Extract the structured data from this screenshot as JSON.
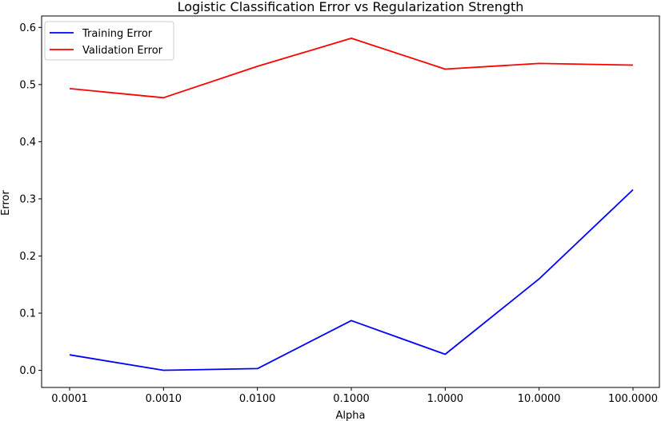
{
  "chart_data": {
    "type": "line",
    "title": "Logistic Classification Error vs Regularization Strength",
    "xlabel": "Alpha",
    "ylabel": "Error",
    "categories": [
      "0.0001",
      "0.0010",
      "0.0100",
      "0.1000",
      "1.0000",
      "10.0000",
      "100.0000"
    ],
    "yticks": [
      "0.0",
      "0.1",
      "0.2",
      "0.3",
      "0.4",
      "0.5",
      "0.6"
    ],
    "ylim": [
      -0.03,
      0.62
    ],
    "grid": false,
    "legend_position": "top-left",
    "series": [
      {
        "name": "Training Error",
        "color": "#0000ff",
        "values": [
          0.027,
          0.0,
          0.003,
          0.087,
          0.028,
          0.16,
          0.316
        ]
      },
      {
        "name": "Validation Error",
        "color": "#ff0000",
        "values": [
          0.493,
          0.477,
          0.532,
          0.581,
          0.527,
          0.537,
          0.534
        ]
      }
    ]
  }
}
